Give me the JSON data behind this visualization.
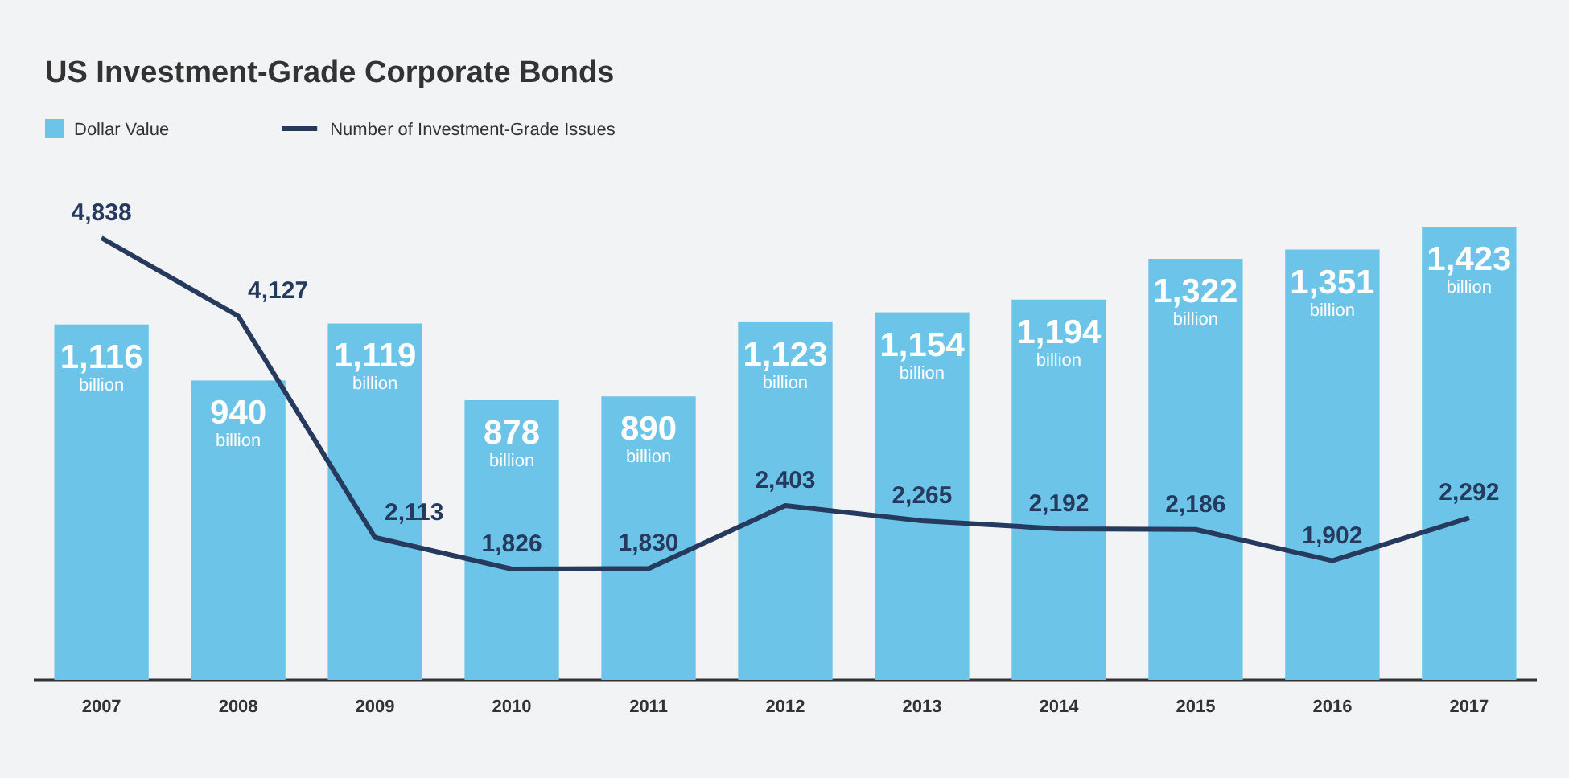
{
  "chart_data": {
    "type": "bar",
    "title": "US Investment-Grade Corporate Bonds",
    "categories": [
      "2007",
      "2008",
      "2009",
      "2010",
      "2011",
      "2012",
      "2013",
      "2014",
      "2015",
      "2016",
      "2017"
    ],
    "series": [
      {
        "name": "Dollar Value",
        "color": "#6cc4e8",
        "values": [
          1116,
          940,
          1119,
          878,
          890,
          1123,
          1154,
          1194,
          1322,
          1351,
          1423
        ],
        "value_labels": [
          "1,116 billion",
          "940 billion",
          "1,119 billion",
          "878 billion",
          "890 billion",
          "1,123 billion",
          "1,154 billion",
          "1,194 billion",
          "1,322 billion",
          "1,351 billion",
          "1,423 billion"
        ]
      },
      {
        "name": "Number of Investment-Grade Issues",
        "type": "line",
        "axis": "y2",
        "color": "#263a5e",
        "values": [
          4838,
          4127,
          2113,
          1826,
          1830,
          2403,
          2265,
          2192,
          2186,
          1902,
          2292
        ],
        "value_labels": [
          "4,838",
          "4,127",
          "2,113",
          "1,826",
          "1,830",
          "2,403",
          "2,265",
          "2,192",
          "2,186",
          "1,902",
          "2,292"
        ]
      }
    ],
    "tick_labels": "x",
    "legend": "top left"
  }
}
